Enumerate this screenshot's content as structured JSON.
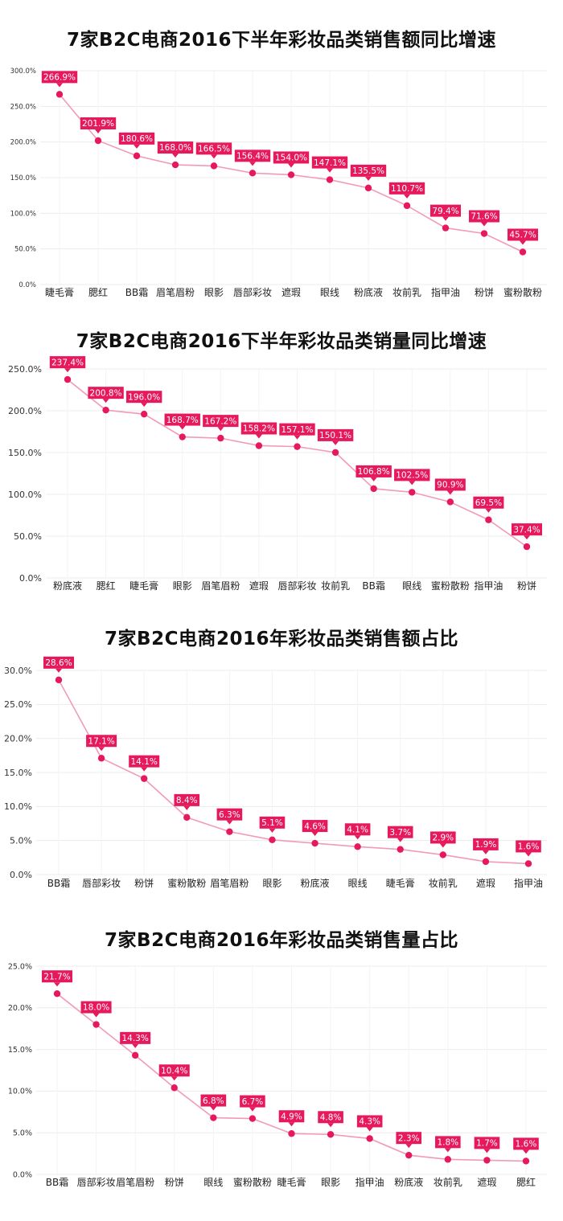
{
  "colors": {
    "line": "#f29ab8",
    "point": "#e6195d",
    "label_bg": "#e6195d",
    "label_text": "#ffffff",
    "grid": "#ececec"
  },
  "chart_data": [
    {
      "type": "line",
      "title": "7家B2C电商2016下半年彩妆品类销售额同比增速",
      "categories": [
        "睫毛膏",
        "腮红",
        "BB霜",
        "眉笔眉粉",
        "眼影",
        "唇部彩妆",
        "遮瑕",
        "眼线",
        "粉底液",
        "妆前乳",
        "指甲油",
        "粉饼",
        "蜜粉散粉"
      ],
      "values": [
        266.9,
        201.9,
        180.6,
        168.0,
        166.5,
        156.4,
        154.0,
        147.1,
        135.5,
        110.7,
        79.4,
        71.6,
        45.7
      ],
      "value_labels": [
        "266.9%",
        "201.9%",
        "180.6%",
        "168.0%",
        "166.5%",
        "156.4%",
        "154.0%",
        "147.1%",
        "135.5%",
        "110.7%",
        "79.4%",
        "71.6%",
        "45.7%"
      ],
      "yticks": [
        "0.0%",
        "50.0%",
        "100.0%",
        "150.0%",
        "200.0%",
        "250.0%",
        "300.0%"
      ],
      "ylim": [
        0,
        300
      ],
      "grid": true
    },
    {
      "type": "line",
      "title": "7家B2C电商2016下半年彩妆品类销量同比增速",
      "categories": [
        "粉底液",
        "腮红",
        "睫毛膏",
        "眼影",
        "眉笔眉粉",
        "遮瑕",
        "唇部彩妆",
        "妆前乳",
        "BB霜",
        "眼线",
        "蜜粉散粉",
        "指甲油",
        "粉饼"
      ],
      "values": [
        237.4,
        200.8,
        196.0,
        168.7,
        167.2,
        158.2,
        157.1,
        150.1,
        106.8,
        102.5,
        90.9,
        69.5,
        37.4
      ],
      "value_labels": [
        "237.4%",
        "200.8%",
        "196.0%",
        "168.7%",
        "167.2%",
        "158.2%",
        "157.1%",
        "150.1%",
        "106.8%",
        "102.5%",
        "90.9%",
        "69.5%",
        "37.4%"
      ],
      "yticks": [
        "0.0%",
        "50.0%",
        "100.0%",
        "150.0%",
        "200.0%",
        "250.0%"
      ],
      "ylim": [
        0,
        250
      ],
      "grid": true
    },
    {
      "type": "line",
      "title": "7家B2C电商2016年彩妆品类销售额占比",
      "categories": [
        "BB霜",
        "唇部彩妆",
        "粉饼",
        "蜜粉散粉",
        "眉笔眉粉",
        "眼影",
        "粉底液",
        "眼线",
        "睫毛膏",
        "妆前乳",
        "遮瑕",
        "指甲油"
      ],
      "values": [
        28.6,
        17.1,
        14.1,
        8.4,
        6.3,
        5.1,
        4.6,
        4.1,
        3.7,
        2.9,
        1.9,
        1.6
      ],
      "value_labels": [
        "28.6%",
        "17.1%",
        "14.1%",
        "8.4%",
        "6.3%",
        "5.1%",
        "4.6%",
        "4.1%",
        "3.7%",
        "2.9%",
        "1.9%",
        "1.6%"
      ],
      "yticks": [
        "0.0%",
        "5.0%",
        "10.0%",
        "15.0%",
        "20.0%",
        "25.0%",
        "30.0%"
      ],
      "ylim": [
        0,
        30
      ],
      "grid": true
    },
    {
      "type": "line",
      "title": "7家B2C电商2016年彩妆品类销售量占比",
      "categories": [
        "BB霜",
        "唇部彩妆",
        "眉笔眉粉",
        "粉饼",
        "眼线",
        "蜜粉散粉",
        "睫毛膏",
        "眼影",
        "指甲油",
        "粉底液",
        "妆前乳",
        "遮瑕",
        "腮红"
      ],
      "values": [
        21.7,
        18.0,
        14.3,
        10.4,
        6.8,
        6.7,
        4.9,
        4.8,
        4.3,
        2.3,
        1.8,
        1.7,
        1.6
      ],
      "value_labels": [
        "21.7%",
        "18.0%",
        "14.3%",
        "10.4%",
        "6.8%",
        "6.7%",
        "4.9%",
        "4.8%",
        "4.3%",
        "2.3%",
        "1.8%",
        "1.7%",
        "1.6%"
      ],
      "yticks": [
        "0.0%",
        "5.0%",
        "10.0%",
        "15.0%",
        "20.0%",
        "25.0%"
      ],
      "ylim": [
        0,
        25
      ],
      "grid": true
    }
  ]
}
